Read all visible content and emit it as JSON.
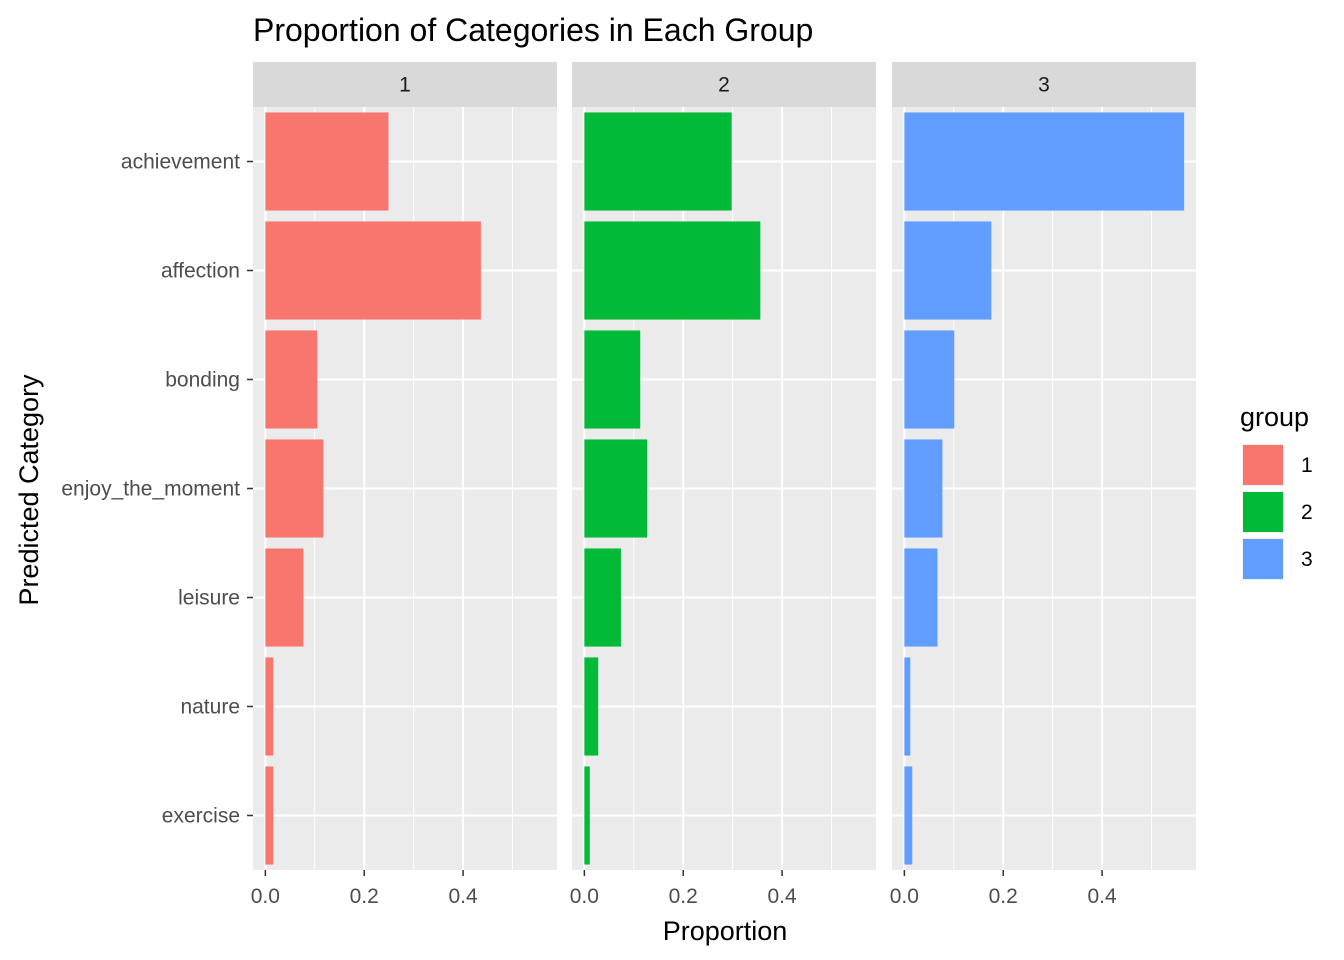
{
  "chart_data": {
    "type": "bar",
    "orientation": "horizontal",
    "title": "Proportion of Categories in Each Group",
    "xlabel": "Proportion",
    "ylabel": "Predicted Category",
    "xlim": [
      -0.025,
      0.59
    ],
    "x_ticks": [
      0.0,
      0.2,
      0.4
    ],
    "x_tick_labels": [
      "0.0",
      "0.2",
      "0.4"
    ],
    "categories": [
      "achievement",
      "affection",
      "bonding",
      "enjoy_the_moment",
      "leisure",
      "nature",
      "exercise"
    ],
    "facet_by": "group",
    "grid": true,
    "legend": {
      "title": "group",
      "position": "right",
      "entries": [
        "1",
        "2",
        "3"
      ]
    },
    "series": [
      {
        "name": "1",
        "color": "#F8766D",
        "values": [
          0.249,
          0.436,
          0.105,
          0.117,
          0.077,
          0.016,
          0.016
        ]
      },
      {
        "name": "2",
        "color": "#00BA38",
        "values": [
          0.298,
          0.356,
          0.113,
          0.127,
          0.074,
          0.028,
          0.011
        ]
      },
      {
        "name": "3",
        "color": "#619CFF",
        "values": [
          0.566,
          0.176,
          0.101,
          0.077,
          0.067,
          0.012,
          0.016
        ]
      }
    ]
  }
}
